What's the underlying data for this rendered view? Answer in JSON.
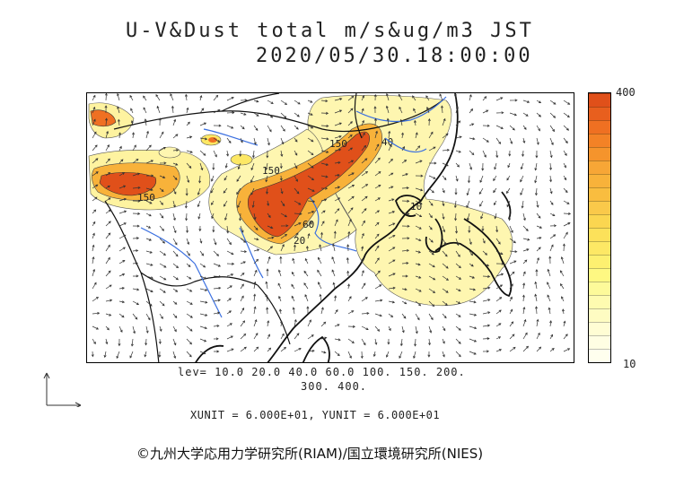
{
  "title": "U-V&Dust total m/s&ug/m3 JST",
  "timestamp": "2020/05/30.18:00:00",
  "colorbar": {
    "max_label": "400",
    "min_label": "10",
    "colors": [
      "#e0501a",
      "#e85f1e",
      "#ef7022",
      "#f38226",
      "#f5942c",
      "#f7a636",
      "#f8b23a",
      "#f9bd3f",
      "#fac94a",
      "#fbd650",
      "#fce15a",
      "#fde865",
      "#fdf070",
      "#fef882",
      "#fdfa9a",
      "#fefbb0",
      "#fefcc2",
      "#fffdd4",
      "#fffee3",
      "#ffffee"
    ]
  },
  "contour_labels": [
    "150",
    "150",
    "150",
    "60",
    "20",
    "40",
    "10"
  ],
  "levels_line1": "lev= 10.0 20.0 40.0 60.0 100. 150. 200.",
  "levels_line2": "300. 400.",
  "units": "XUNIT = 6.000E+01, YUNIT = 6.000E+01",
  "credit": "©九州大学応用力学研究所(RIAM)/国立環境研究所(NIES)"
}
